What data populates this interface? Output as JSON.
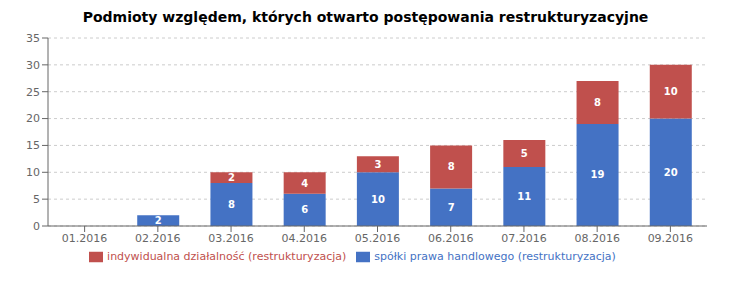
{
  "chart_data": {
    "type": "bar",
    "title": "Podmioty względem, których otwarto postępowania restrukturyzacyjne",
    "categories": [
      "01.2016",
      "02.2016",
      "03.2016",
      "04.2016",
      "05.2016",
      "06.2016",
      "07.2016",
      "08.2016",
      "09.2016"
    ],
    "series": [
      {
        "name": "spółki prawa handlowego (restrukturyzacja)",
        "color": "#4472C4",
        "values": [
          0,
          2,
          8,
          6,
          10,
          7,
          11,
          19,
          20
        ]
      },
      {
        "name": "indywidualna działalność (restrukturyzacja)",
        "color": "#C0504D",
        "values": [
          0,
          0,
          2,
          4,
          3,
          8,
          5,
          8,
          10
        ]
      }
    ],
    "ylim": [
      0,
      35
    ],
    "yticks": [
      0,
      5,
      10,
      15,
      20,
      25,
      30,
      35
    ],
    "stacked": true,
    "grid": true,
    "legend": "bottom",
    "data_labels": true
  }
}
